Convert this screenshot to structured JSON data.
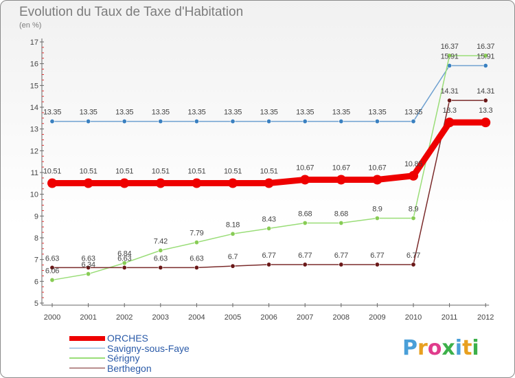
{
  "header": {
    "title": "Evolution du Taux de Taxe d'Habitation",
    "unit": "(en %)"
  },
  "logo": {
    "text": "Proxiti",
    "letter_colors": [
      "#4a9fd8",
      "#e8a020",
      "#e03c8c",
      "#3cb04a",
      "#4a9fd8",
      "#e8a020",
      "#3cb04a"
    ]
  },
  "chart_data": {
    "type": "line",
    "title": "Evolution du Taux de Taxe d'Habitation",
    "ylabel": "(en %)",
    "xlabel": "",
    "x": [
      "2000",
      "2001",
      "2002",
      "2003",
      "2004",
      "2005",
      "2006",
      "2007",
      "2008",
      "2009",
      "2010",
      "2011",
      "2012"
    ],
    "ylim": [
      5,
      17
    ],
    "yticks": [
      "5",
      "6",
      "7",
      "8",
      "9",
      "10",
      "11",
      "12",
      "13",
      "14",
      "15",
      "16",
      "17"
    ],
    "grid": false,
    "legend_position": "bottom-left",
    "series": [
      {
        "name": "ORCHES",
        "color": "#ee0000",
        "values": [
          10.51,
          10.51,
          10.51,
          10.51,
          10.51,
          10.51,
          10.51,
          10.67,
          10.67,
          10.67,
          10.85,
          13.3,
          13.3
        ],
        "labels": [
          "10.51",
          "10.51",
          "10.51",
          "10.51",
          "10.51",
          "10.51",
          "10.51",
          "10.67",
          "10.67",
          "10.67",
          "10.85",
          "13.3",
          "13.3"
        ]
      },
      {
        "name": "Savigny-sous-Faye",
        "color": "#6ea0d0",
        "values": [
          13.35,
          13.35,
          13.35,
          13.35,
          13.35,
          13.35,
          13.35,
          13.35,
          13.35,
          13.35,
          13.35,
          15.91,
          15.91
        ],
        "labels": [
          "13.35",
          "13.35",
          "13.35",
          "13.35",
          "13.35",
          "13.35",
          "13.35",
          "13.35",
          "13.35",
          "13.35",
          "13.35",
          "15.91",
          "15.91"
        ]
      },
      {
        "name": "Sérigny",
        "color": "#99dd77",
        "values": [
          6.06,
          6.34,
          6.84,
          7.42,
          7.79,
          8.18,
          8.43,
          8.68,
          8.68,
          8.9,
          8.9,
          16.37,
          16.37
        ],
        "labels": [
          "6.06",
          "6.34",
          "6.84",
          "7.42",
          "7.79",
          "8.18",
          "8.43",
          "8.68",
          "8.68",
          "8.9",
          "8.9",
          "16.37",
          "16.37"
        ]
      },
      {
        "name": "Berthegon",
        "color": "#7a2a2a",
        "values": [
          6.63,
          6.63,
          6.63,
          6.63,
          6.63,
          6.7,
          6.77,
          6.77,
          6.77,
          6.77,
          6.77,
          14.31,
          14.31
        ],
        "labels": [
          "6.63",
          "6.63",
          "6.63",
          "6.63",
          "6.63",
          "6.7",
          "6.77",
          "6.77",
          "6.77",
          "6.77",
          "6.77",
          "14.31",
          "14.31"
        ]
      }
    ]
  }
}
